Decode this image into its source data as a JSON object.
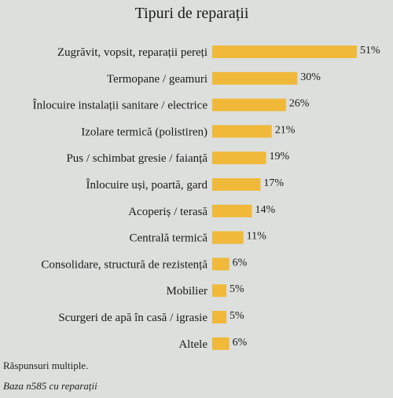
{
  "chart_data": {
    "type": "bar",
    "orientation": "horizontal",
    "title": "Tipuri de reparații",
    "categories": [
      "Zugrăvit, vopsit, reparații pereți",
      "Termopane / geamuri",
      "Înlocuire instalații sanitare / electrice",
      "Izolare termică (polistiren)",
      "Pus / schimbat gresie / faianță",
      "Înlocuire uși, poartă, gard",
      "Acoperiș / terasă",
      "Centrală termică",
      "Consolidare, structură de rezistență",
      "Mobilier",
      "Scurgeri de apă în casă / igrasie",
      "Altele"
    ],
    "values": [
      51,
      30,
      26,
      21,
      19,
      17,
      14,
      11,
      6,
      5,
      5,
      6
    ],
    "value_labels": [
      "51%",
      "30%",
      "26%",
      "21%",
      "19%",
      "17%",
      "14%",
      "11%",
      "6%",
      "5%",
      "5%",
      "6%"
    ],
    "unit": "%",
    "bar_color": "#f0b93a",
    "grid": false,
    "legend": "none"
  },
  "notes": {
    "line1": "Răspunsuri multiple.",
    "line2": "Baza n585 cu reparații"
  }
}
